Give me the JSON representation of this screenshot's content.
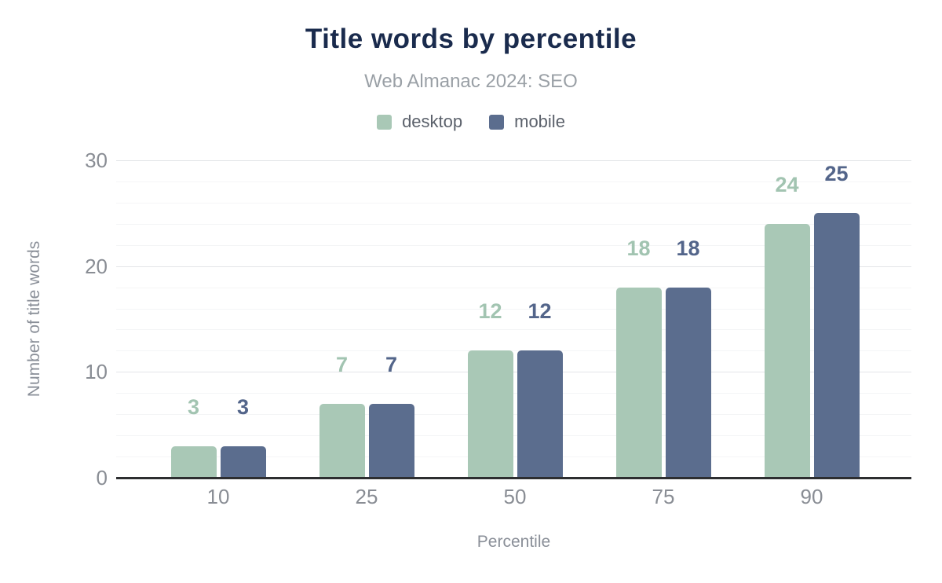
{
  "title": "Title words by percentile",
  "subtitle": "Web Almanac 2024: SEO",
  "legend": [
    {
      "label": "desktop",
      "color": "#a9c8b6"
    },
    {
      "label": "mobile",
      "color": "#5b6d8e"
    }
  ],
  "chart_data": {
    "type": "bar",
    "title": "Title words by percentile",
    "subtitle": "Web Almanac 2024: SEO",
    "categories": [
      "10",
      "25",
      "50",
      "75",
      "90"
    ],
    "series": [
      {
        "name": "desktop",
        "color": "#a9c8b6",
        "label_color": "#a2c4b1",
        "values": [
          3,
          7,
          12,
          18,
          24
        ]
      },
      {
        "name": "mobile",
        "color": "#5b6d8e",
        "label_color": "#53658a",
        "values": [
          3,
          7,
          12,
          18,
          25
        ]
      }
    ],
    "xlabel": "Percentile",
    "ylabel": "Number of title words",
    "ylim": [
      0,
      30
    ],
    "yticks": [
      0,
      10,
      20,
      30
    ],
    "grid": {
      "minor_step": 2,
      "major_step": 10
    },
    "legend_position": "top",
    "data_labels": true
  }
}
